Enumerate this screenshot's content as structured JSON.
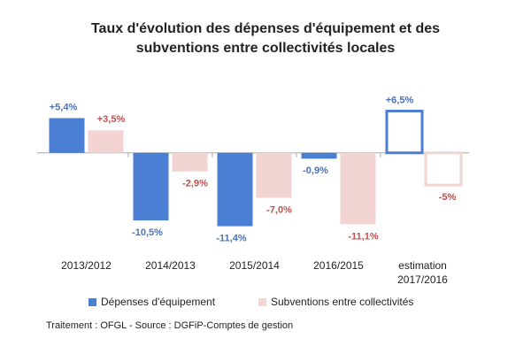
{
  "chart_data": {
    "type": "bar",
    "title": "Taux d'évolution des dépenses d'équipement et des subventions entre collectivités locales",
    "categories": [
      "2013/2012",
      "2014/2013",
      "2015/2014",
      "2016/2015",
      "estimation 2017/2016"
    ],
    "series": [
      {
        "name": "Dépenses d'équipement",
        "color": "#4a7fd4",
        "label_color": "#4a72b8",
        "values": [
          5.4,
          -10.5,
          -11.4,
          -0.9,
          6.5
        ],
        "value_labels": [
          "+5,4%",
          "-10,5%",
          "-11,4%",
          "-0,9%",
          "+6,5%"
        ]
      },
      {
        "name": "Subventions entre collectivités",
        "color": "#f2d5d3",
        "label_color": "#c0504d",
        "values": [
          3.5,
          -2.9,
          -7.0,
          -11.1,
          -5
        ],
        "value_labels": [
          "+3,5%",
          "-2,9%",
          "-7,0%",
          "-11,1%",
          "-5%"
        ]
      }
    ],
    "outlined_categories": [
      4
    ],
    "ylim": [
      -17.5,
      10
    ],
    "grid": false,
    "source": "Traitement : OFGL - Source : DGFiP-Comptes de gestion"
  }
}
